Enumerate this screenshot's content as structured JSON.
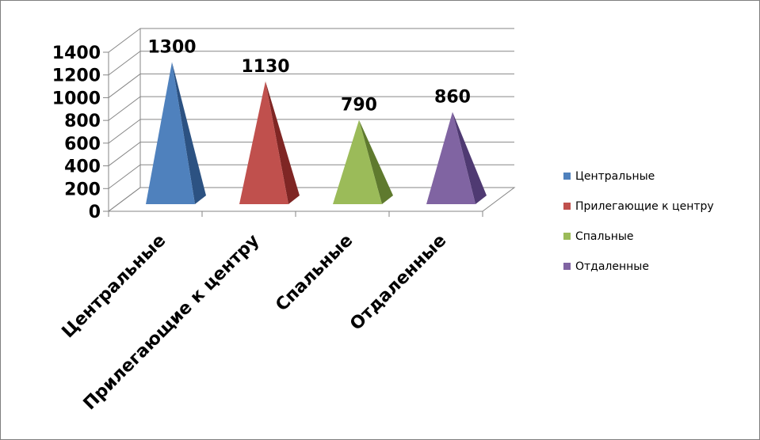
{
  "chart_data": {
    "type": "bar",
    "shape": "3d-pyramid",
    "categories": [
      "Центральные",
      "Прилегающие к центру",
      "Спальные",
      "Отдаленные"
    ],
    "values": [
      1300,
      1130,
      790,
      860
    ],
    "ylim": [
      0,
      1400
    ],
    "yticks": [
      0,
      200,
      400,
      600,
      800,
      1000,
      1200,
      1400
    ],
    "grid": true,
    "legend_position": "right",
    "colors": [
      "#4f81bd",
      "#c0504d",
      "#9bbb59",
      "#8064a2"
    ],
    "shadow_colors": [
      "#2c5282",
      "#7f2624",
      "#5f7a2e",
      "#4f3a72"
    ]
  }
}
